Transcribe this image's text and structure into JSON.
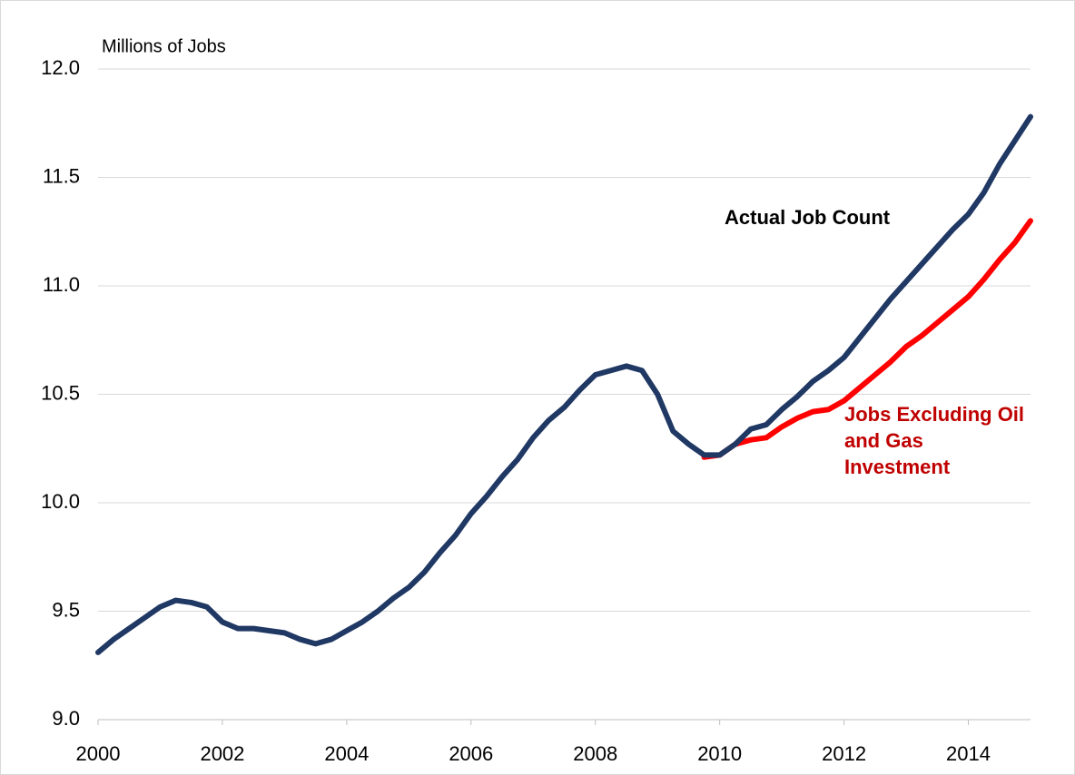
{
  "chart_data": {
    "type": "line",
    "y_axis_label": "Millions of Jobs",
    "x": [
      2000.0,
      2000.25,
      2000.5,
      2000.75,
      2001.0,
      2001.25,
      2001.5,
      2001.75,
      2002.0,
      2002.25,
      2002.5,
      2002.75,
      2003.0,
      2003.25,
      2003.5,
      2003.75,
      2004.0,
      2004.25,
      2004.5,
      2004.75,
      2005.0,
      2005.25,
      2005.5,
      2005.75,
      2006.0,
      2006.25,
      2006.5,
      2006.75,
      2007.0,
      2007.25,
      2007.5,
      2007.75,
      2008.0,
      2008.25,
      2008.5,
      2008.75,
      2009.0,
      2009.25,
      2009.5,
      2009.75,
      2010.0,
      2010.25,
      2010.5,
      2010.75,
      2011.0,
      2011.25,
      2011.5,
      2011.75,
      2012.0,
      2012.25,
      2012.5,
      2012.75,
      2013.0,
      2013.25,
      2013.5,
      2013.75,
      2014.0,
      2014.25,
      2014.5,
      2014.75,
      2015.0
    ],
    "series": [
      {
        "name": "Actual Job Count",
        "color": "#203864",
        "label_color": "#000000",
        "values": [
          9.31,
          9.37,
          9.42,
          9.47,
          9.52,
          9.55,
          9.54,
          9.52,
          9.45,
          9.42,
          9.42,
          9.41,
          9.4,
          9.37,
          9.35,
          9.37,
          9.41,
          9.45,
          9.5,
          9.56,
          9.61,
          9.68,
          9.77,
          9.85,
          9.95,
          10.03,
          10.12,
          10.2,
          10.3,
          10.38,
          10.44,
          10.52,
          10.59,
          10.61,
          10.63,
          10.61,
          10.5,
          10.33,
          10.27,
          10.22,
          10.22,
          10.27,
          10.34,
          10.36,
          10.43,
          10.49,
          10.56,
          10.61,
          10.67,
          10.76,
          10.85,
          10.94,
          11.02,
          11.1,
          11.18,
          11.26,
          11.33,
          11.43,
          11.56,
          11.67,
          11.78
        ]
      },
      {
        "name": "Jobs Excluding Oil and Gas Investment",
        "color": "#ff0000",
        "label_color": "#c00000",
        "values": [
          null,
          null,
          null,
          null,
          null,
          null,
          null,
          null,
          null,
          null,
          null,
          null,
          null,
          null,
          null,
          null,
          null,
          null,
          null,
          null,
          null,
          null,
          null,
          null,
          null,
          null,
          null,
          null,
          null,
          null,
          null,
          null,
          null,
          null,
          null,
          null,
          null,
          null,
          null,
          10.21,
          10.22,
          10.27,
          10.29,
          10.3,
          10.35,
          10.39,
          10.42,
          10.43,
          10.47,
          10.53,
          10.59,
          10.65,
          10.72,
          10.77,
          10.83,
          10.89,
          10.95,
          11.03,
          11.12,
          11.2,
          11.3
        ]
      }
    ],
    "xlim": [
      2000,
      2015
    ],
    "xticks": [
      2000,
      2002,
      2004,
      2006,
      2008,
      2010,
      2012,
      2014
    ],
    "ylim": [
      9,
      12
    ],
    "yticks": [
      {
        "value": 9,
        "label": "9.0"
      },
      {
        "value": 9.5,
        "label": "9.5"
      },
      {
        "value": 10,
        "label": "10.0"
      },
      {
        "value": 10.5,
        "label": "10.5"
      },
      {
        "value": 11,
        "label": "11.0"
      },
      {
        "value": 11.5,
        "label": "11.5"
      },
      {
        "value": 12,
        "label": "12.0"
      }
    ],
    "grid": true,
    "legend": false
  }
}
